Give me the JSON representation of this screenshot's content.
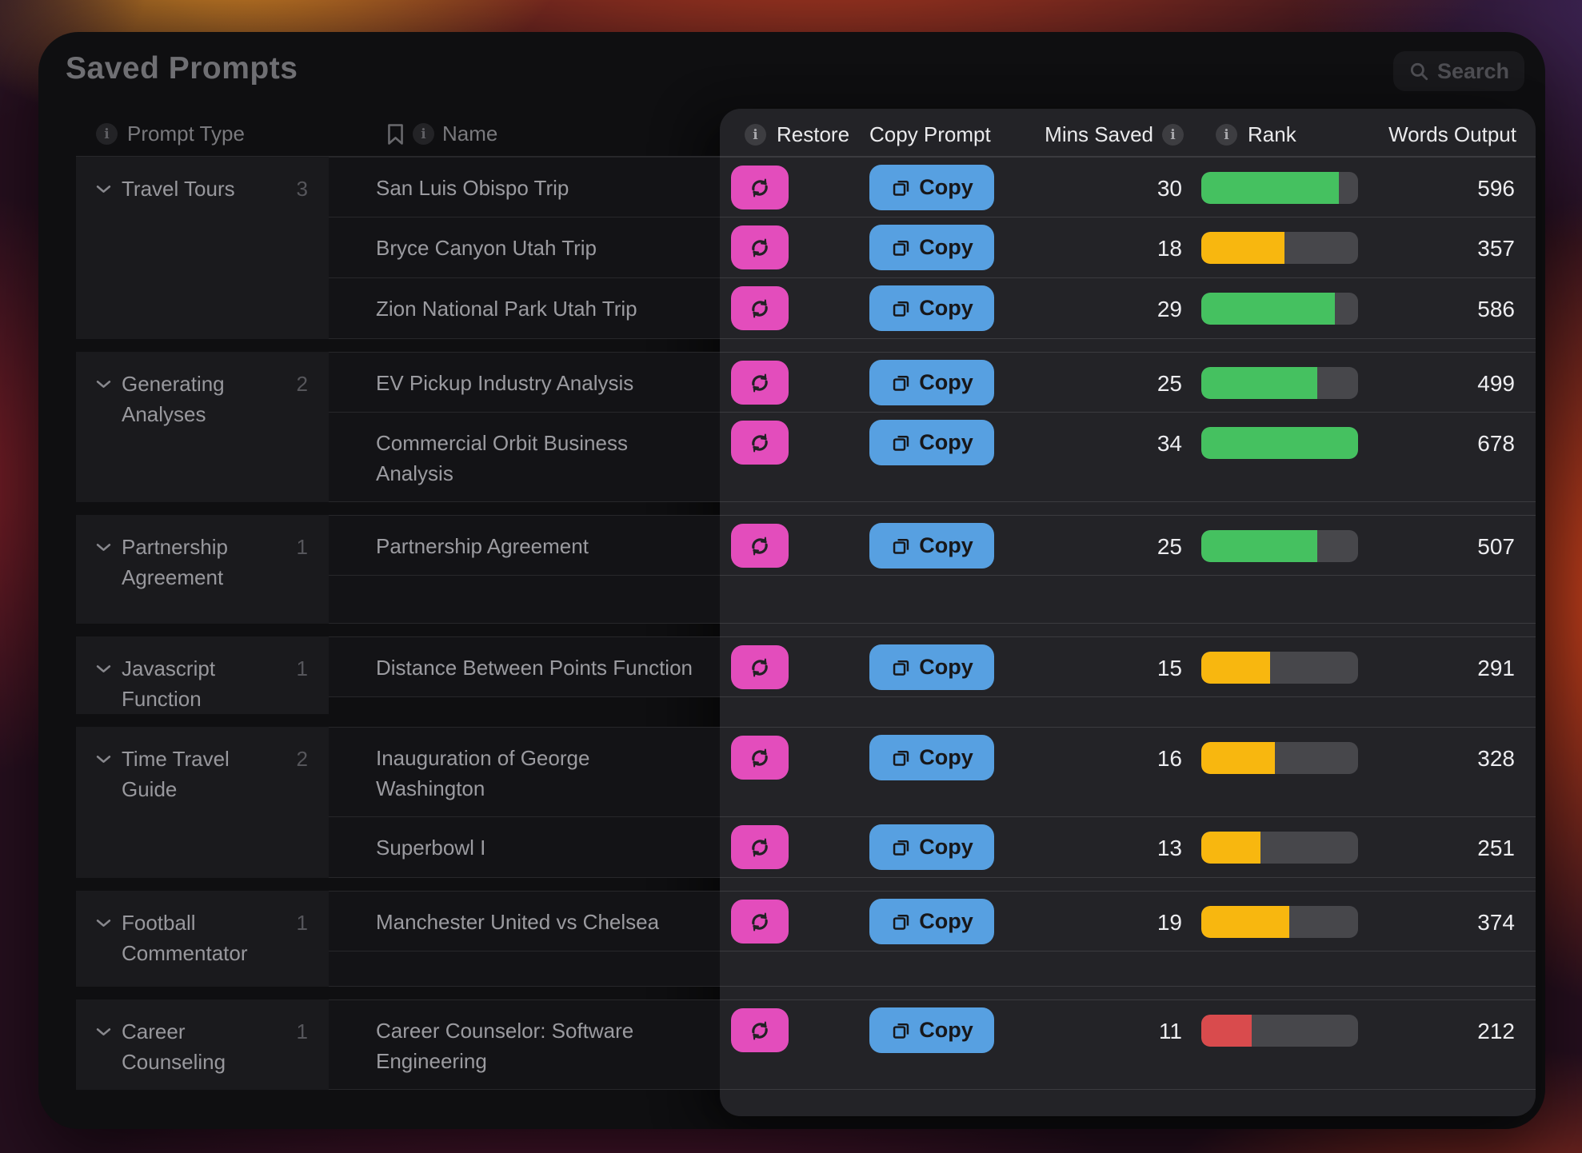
{
  "app": {
    "title": "Saved Prompts",
    "search_label": "Search"
  },
  "table": {
    "columns": {
      "prompt_type": "Prompt Type",
      "name": "Name",
      "restore": "Restore",
      "copy_prompt": "Copy Prompt",
      "mins_saved": "Mins Saved",
      "rank": "Rank",
      "words_output": "Words Output"
    },
    "copy_button_label": "Copy",
    "groups": [
      {
        "type": "Travel Tours",
        "count": "3",
        "rows": [
          {
            "name": "San Luis Obispo Trip",
            "mins": "30",
            "words": "596",
            "rank_pct": 88,
            "rank_color": "green"
          },
          {
            "name": "Bryce Canyon Utah Trip",
            "mins": "18",
            "words": "357",
            "rank_pct": 53,
            "rank_color": "yellow"
          },
          {
            "name": "Zion National Park Utah Trip",
            "mins": "29",
            "words": "586",
            "rank_pct": 85,
            "rank_color": "green"
          }
        ]
      },
      {
        "type": "Generating Analyses",
        "count": "2",
        "rows": [
          {
            "name": "EV Pickup Industry Analysis",
            "mins": "25",
            "words": "499",
            "rank_pct": 74,
            "rank_color": "green"
          },
          {
            "name": "Commercial Orbit Business Analysis",
            "mins": "34",
            "words": "678",
            "rank_pct": 100,
            "rank_color": "green"
          }
        ]
      },
      {
        "type": "Partnership Agreement",
        "count": "1",
        "rows": [
          {
            "name": "Partnership Agreement",
            "mins": "25",
            "words": "507",
            "rank_pct": 74,
            "rank_color": "green"
          }
        ]
      },
      {
        "type": "Javascript Function",
        "count": "1",
        "rows": [
          {
            "name": "Distance Between Points Function",
            "mins": "15",
            "words": "291",
            "rank_pct": 44,
            "rank_color": "yellow"
          }
        ]
      },
      {
        "type": "Time Travel Guide",
        "count": "2",
        "rows": [
          {
            "name": "Inauguration of George Washington",
            "mins": "16",
            "words": "328",
            "rank_pct": 47,
            "rank_color": "yellow"
          },
          {
            "name": "Superbowl I",
            "mins": "13",
            "words": "251",
            "rank_pct": 38,
            "rank_color": "yellow"
          }
        ]
      },
      {
        "type": "Football Commentator",
        "count": "1",
        "rows": [
          {
            "name": "Manchester United vs Chelsea",
            "mins": "19",
            "words": "374",
            "rank_pct": 56,
            "rank_color": "yellow"
          }
        ]
      },
      {
        "type": "Career Counseling",
        "count": "1",
        "rows": [
          {
            "name": "Career Counselor: Software Engineering",
            "mins": "11",
            "words": "212",
            "rank_pct": 32,
            "rank_color": "red"
          }
        ]
      }
    ]
  },
  "colors": {
    "rank_green": "#45c160",
    "rank_yellow": "#f8b70f",
    "rank_red": "#d94b4d",
    "rank_track": "#47474b",
    "restore_pink": "#e34dbc",
    "copy_blue": "#57a0e1",
    "panel": "#232327"
  }
}
